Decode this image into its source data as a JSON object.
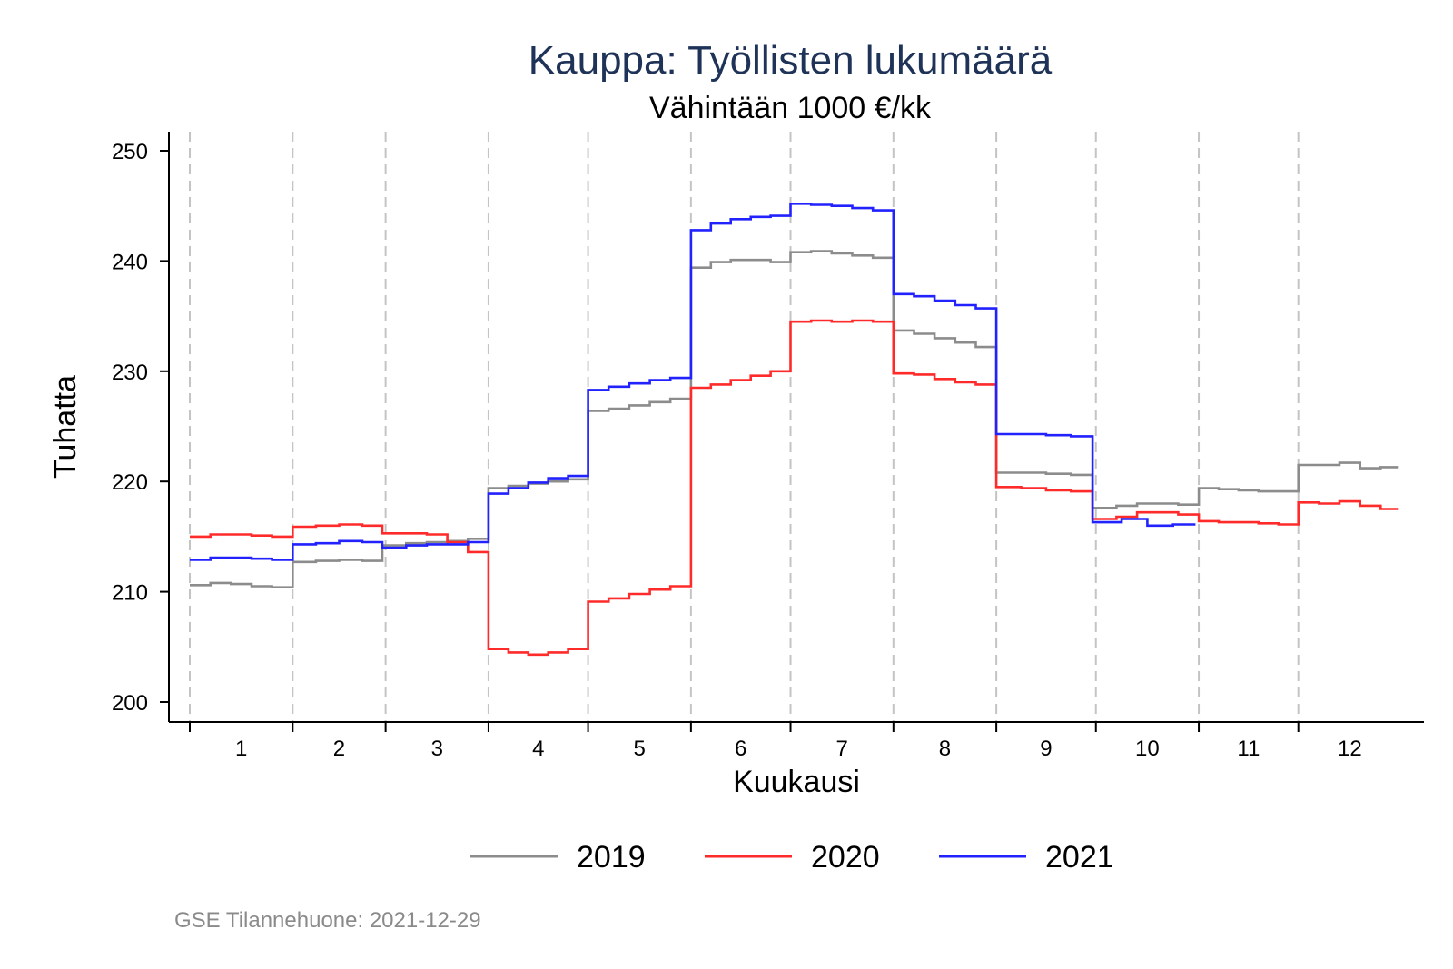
{
  "chart_data": {
    "type": "line",
    "title": "Kauppa: Työllisten lukumäärä",
    "subtitle": "Vähintään 1000 €/kk",
    "xlabel": "Kuukausi",
    "ylabel": "Tuhatta",
    "ylim": [
      200,
      250
    ],
    "yticks": [
      200,
      210,
      220,
      230,
      240,
      250
    ],
    "yticklabels": [
      "200",
      "210",
      "220",
      "230",
      "240",
      "250"
    ],
    "categories": [
      "1",
      "2",
      "3",
      "4",
      "5",
      "6",
      "7",
      "8",
      "9",
      "10",
      "11",
      "12"
    ],
    "month_lengths": [
      31,
      28,
      31,
      30,
      31,
      30,
      31,
      31,
      30,
      31,
      30,
      31
    ],
    "grid": false,
    "month_separators": "dashed vertical lines at month boundaries",
    "legend_position": "bottom",
    "series": [
      {
        "name": "2019",
        "color": "#8c8c8c",
        "weekly": [
          [
            210.6,
            210.8,
            210.7,
            210.5,
            210.4
          ],
          [
            212.7,
            212.8,
            212.9,
            212.8
          ],
          [
            214.2,
            214.4,
            214.5,
            214.6,
            214.8
          ],
          [
            219.4,
            219.6,
            219.8,
            220.0,
            220.2
          ],
          [
            226.4,
            226.6,
            226.9,
            227.2,
            227.5
          ],
          [
            239.4,
            239.9,
            240.1,
            240.1,
            239.9
          ],
          [
            240.8,
            240.9,
            240.7,
            240.5,
            240.3
          ],
          [
            233.7,
            233.4,
            233.0,
            232.6,
            232.2
          ],
          [
            220.8,
            220.8,
            220.7,
            220.6
          ],
          [
            217.6,
            217.8,
            218.0,
            218.0,
            217.9
          ],
          [
            219.4,
            219.3,
            219.2,
            219.1,
            219.1
          ],
          [
            221.5,
            221.5,
            221.7,
            221.2,
            221.3
          ]
        ]
      },
      {
        "name": "2020",
        "color": "#ff2a2a",
        "weekly": [
          [
            215.0,
            215.2,
            215.2,
            215.1,
            215.0
          ],
          [
            215.9,
            216.0,
            216.1,
            216.0
          ],
          [
            215.3,
            215.3,
            215.2,
            214.5,
            213.6
          ],
          [
            204.8,
            204.5,
            204.3,
            204.5,
            204.8
          ],
          [
            209.1,
            209.4,
            209.8,
            210.2,
            210.5
          ],
          [
            228.5,
            228.8,
            229.2,
            229.6,
            230.0
          ],
          [
            234.5,
            234.6,
            234.5,
            234.6,
            234.5
          ],
          [
            229.8,
            229.7,
            229.3,
            229.0,
            228.8
          ],
          [
            219.5,
            219.4,
            219.2,
            219.1
          ],
          [
            216.6,
            216.8,
            217.2,
            217.2,
            217.0
          ],
          [
            216.4,
            216.3,
            216.3,
            216.2,
            216.1
          ],
          [
            218.1,
            218.0,
            218.2,
            217.8,
            217.5
          ]
        ]
      },
      {
        "name": "2021",
        "color": "#2222ff",
        "weekly": [
          [
            212.9,
            213.1,
            213.1,
            213.0,
            212.9
          ],
          [
            214.3,
            214.4,
            214.6,
            214.5
          ],
          [
            214.0,
            214.2,
            214.3,
            214.3,
            214.5
          ],
          [
            218.9,
            219.4,
            219.9,
            220.3,
            220.5
          ],
          [
            228.3,
            228.6,
            228.9,
            229.2,
            229.4
          ],
          [
            242.8,
            243.4,
            243.8,
            244.0,
            244.1
          ],
          [
            245.2,
            245.1,
            245.0,
            244.8,
            244.6
          ],
          [
            237.0,
            236.8,
            236.4,
            236.0,
            235.7
          ],
          [
            224.3,
            224.3,
            224.2,
            224.1
          ],
          [
            216.3,
            216.6,
            216.0,
            216.1
          ]
        ]
      }
    ]
  },
  "footnote": "GSE Tilannehuone: 2021-12-29"
}
